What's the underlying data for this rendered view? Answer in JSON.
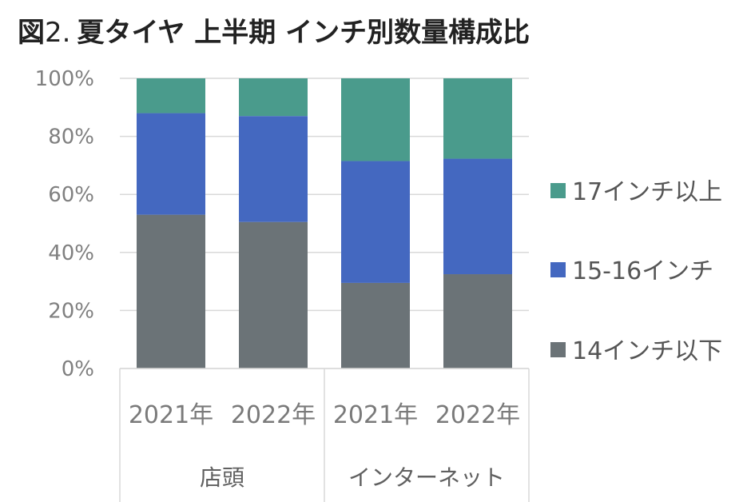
{
  "chart_data": {
    "type": "bar",
    "stacked": true,
    "percent_stacked": true,
    "title_prefix": "図",
    "title_number": "2.",
    "title_main": "夏タイヤ 上半期 インチ別数量構成比",
    "ylim": [
      0,
      100
    ],
    "y_ticks": [
      "0%",
      "20%",
      "40%",
      "60%",
      "80%",
      "100%"
    ],
    "y_tick_values": [
      0,
      20,
      40,
      60,
      80,
      100
    ],
    "grid": true,
    "legend_position": "right",
    "categories": [
      "2021年",
      "2022年",
      "2021年",
      "2022年"
    ],
    "groups": [
      {
        "label": "店頭",
        "span": [
          0,
          1
        ]
      },
      {
        "label": "インターネット",
        "span": [
          2,
          3
        ]
      }
    ],
    "series": [
      {
        "name": "14インチ以下",
        "color": "#6b7377",
        "values": [
          53,
          50.5,
          29.5,
          32.5
        ]
      },
      {
        "name": "15-16インチ",
        "color": "#4468c0",
        "values": [
          35,
          36.5,
          42,
          39.8
        ]
      },
      {
        "name": "17インチ以上",
        "color": "#4a9b8c",
        "values": [
          12,
          13,
          28.5,
          27.7
        ]
      }
    ]
  }
}
